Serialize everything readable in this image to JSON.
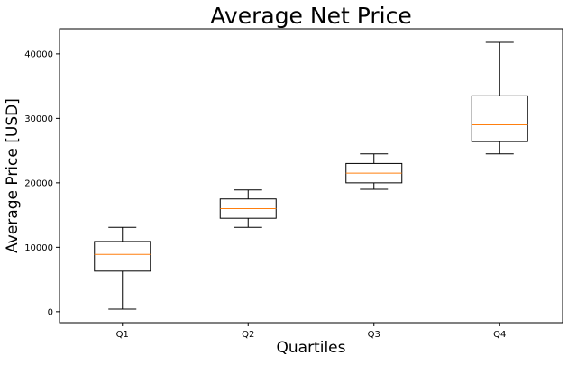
{
  "chart_data": {
    "type": "box",
    "title": "Average Net Price",
    "xlabel": "Quartiles",
    "ylabel": "Average Price [USD]",
    "categories": [
      "Q1",
      "Q2",
      "Q3",
      "Q4"
    ],
    "boxes": [
      {
        "category": "Q1",
        "whisker_low": 400,
        "q1": 6300,
        "median": 8900,
        "q3": 10900,
        "whisker_high": 13100
      },
      {
        "category": "Q2",
        "whisker_low": 13100,
        "q1": 14500,
        "median": 16000,
        "q3": 17500,
        "whisker_high": 18900
      },
      {
        "category": "Q3",
        "whisker_low": 19000,
        "q1": 20000,
        "median": 21500,
        "q3": 23000,
        "whisker_high": 24500
      },
      {
        "category": "Q4",
        "whisker_low": 24500,
        "q1": 26400,
        "median": 29000,
        "q3": 33500,
        "whisker_high": 41800
      }
    ],
    "y_ticks": [
      0,
      10000,
      20000,
      30000,
      40000
    ],
    "ylim": [
      -1700,
      43900
    ],
    "grid": false,
    "legend": "none",
    "colors": {
      "box": "#000000",
      "median": "#ff7f0e"
    }
  }
}
